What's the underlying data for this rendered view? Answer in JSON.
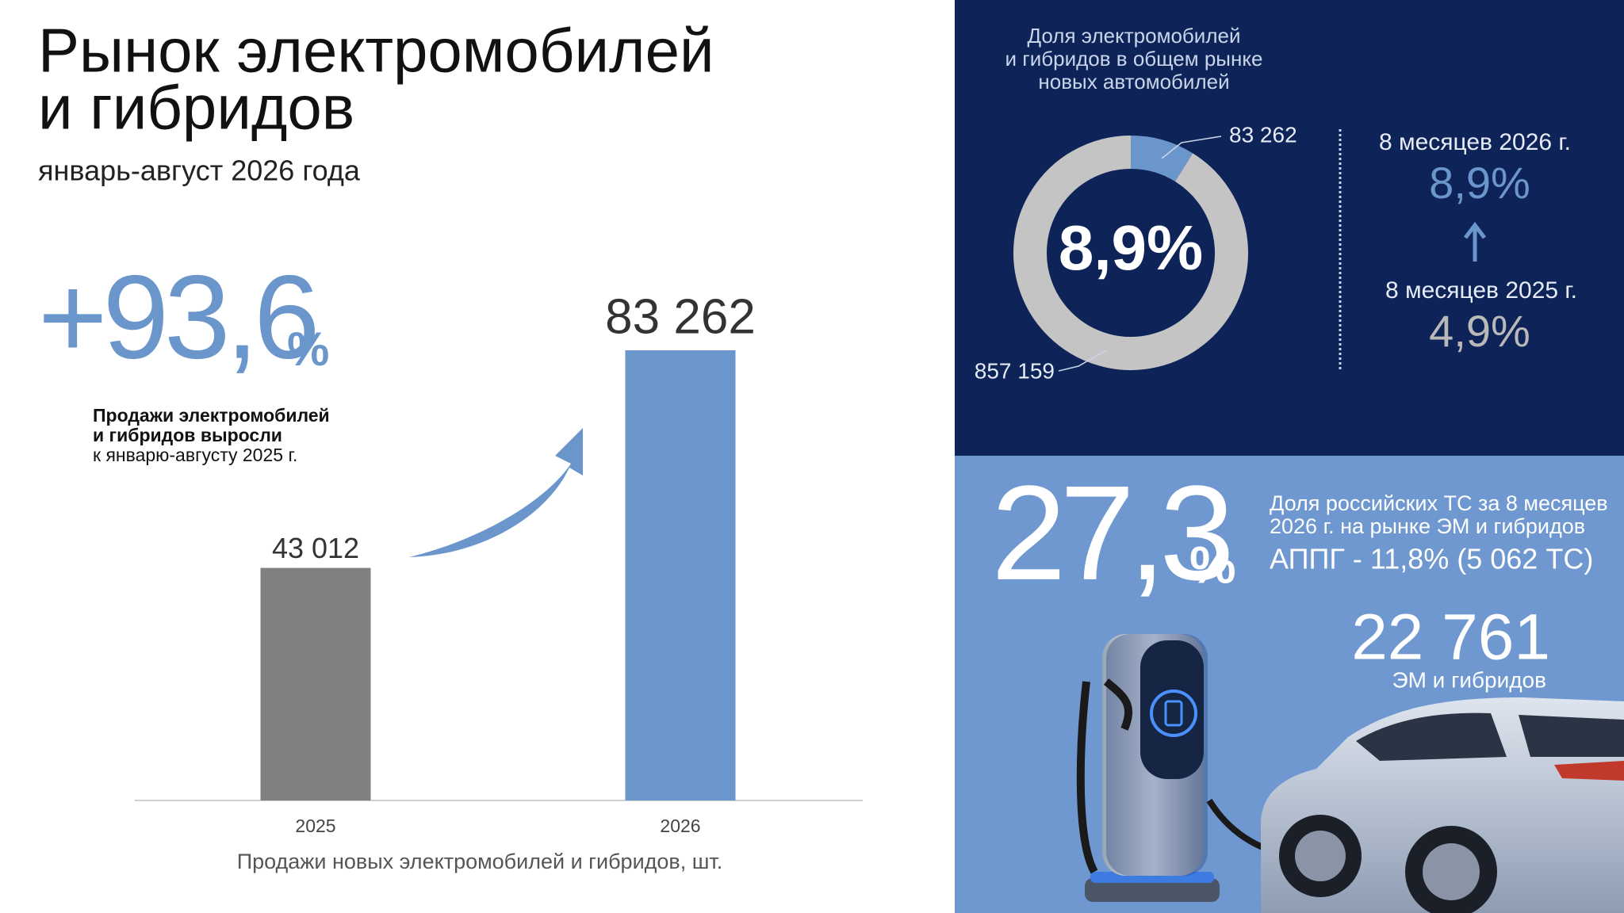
{
  "header": {
    "title_lines": [
      "Рынок электромобилей",
      "и гибридов"
    ],
    "subtitle": "январь-август 2026 года"
  },
  "growth": {
    "value": "+93,6",
    "unit": "%",
    "description_lines": [
      "Продажи электромобилей",
      "и гибридов выросли",
      "к январю-августу 2025 г."
    ]
  },
  "chart_data": [
    {
      "type": "bar",
      "categories": [
        "2025",
        "2026"
      ],
      "values": [
        43012,
        83262
      ],
      "value_labels": [
        "43 012",
        "83 262"
      ],
      "colors": [
        "#808080",
        "#6b96cb"
      ],
      "x_label": "Продажи новых электромобилей и гибридов, шт."
    },
    {
      "type": "pie",
      "title_lines": [
        "Доля электромобилей",
        "и гибридов в общем рынке",
        "новых автомобилей"
      ],
      "values": [
        83262,
        857159
      ],
      "value_labels": [
        "83 262",
        "857 159"
      ],
      "colors": [
        "#6b96cb",
        "#c4c4c4"
      ],
      "center_label": "8,9%"
    }
  ],
  "comparison": {
    "current_label": "8 месяцев 2026 г.",
    "current_value": "8,9%",
    "previous_label": "8 месяцев 2025 г.",
    "previous_value": "4,9%"
  },
  "russian": {
    "value": "27,3",
    "unit": "%",
    "description_lines": [
      "Доля российских ТС за 8 месяцев",
      "2026 г. на рынке ЭМ и гибридов"
    ],
    "last_year": "АППГ - 11,8% (5 062 ТС)",
    "count": "22 761",
    "count_label": "ЭМ и гибридов"
  }
}
